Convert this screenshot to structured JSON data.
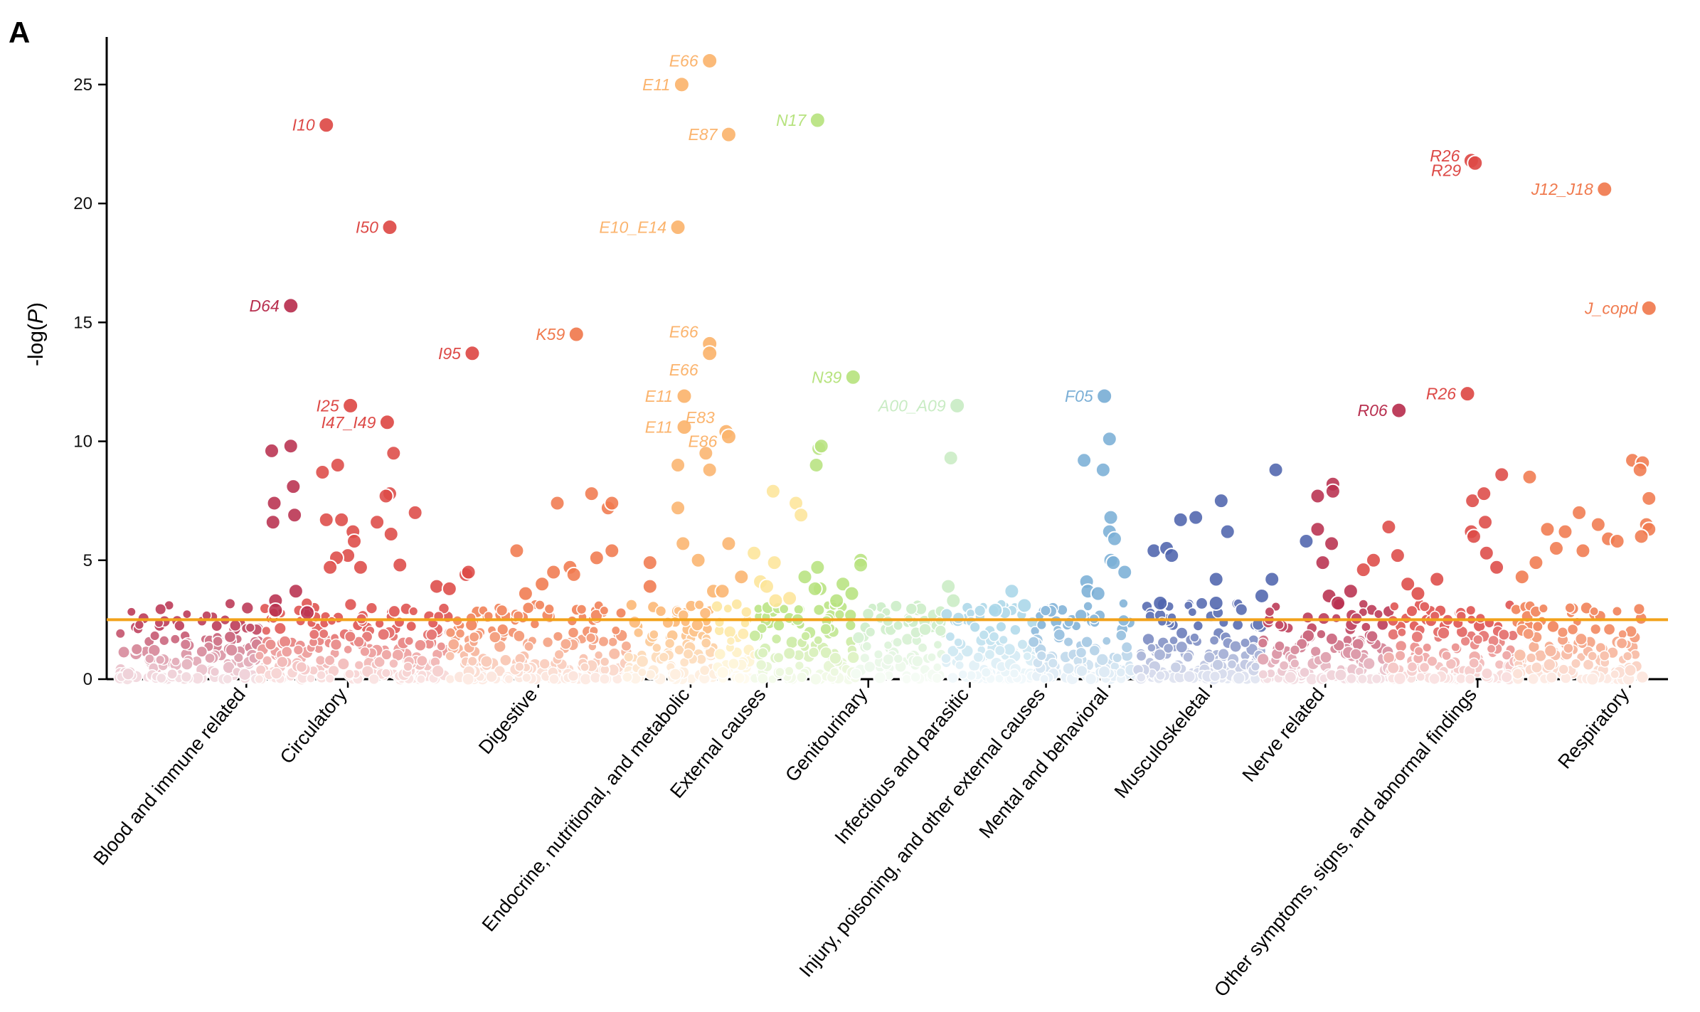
{
  "panel_label": "A",
  "chart_data": {
    "type": "scatter",
    "subtype": "manhattan",
    "title": "",
    "xlabel": "",
    "ylabel_prefix": "-log(",
    "ylabel_italic": "P",
    "ylabel_suffix": ")",
    "ylim": [
      0,
      27
    ],
    "yticks": [
      0,
      5,
      10,
      15,
      20,
      25
    ],
    "threshold": 2.5,
    "threshold_color": "#f2a21b",
    "categories": [
      {
        "name": "Blood and immune related",
        "color": "#b8304f",
        "x_range": [
          1,
          12
        ],
        "label_x": 11
      },
      {
        "name": "Circulatory",
        "color": "#dd4a47",
        "x_range": [
          12,
          27
        ],
        "label_x": 19
      },
      {
        "name": "Digestive",
        "color": "#f07a4e",
        "x_range": [
          27,
          41
        ],
        "label_x": 34
      },
      {
        "name": "Endocrine, nutritional, and metabolic",
        "color": "#fbb46e",
        "x_range": [
          41,
          48
        ],
        "label_x": 46
      },
      {
        "name": "External causes",
        "color": "#fde59a",
        "x_range": [
          48,
          51
        ],
        "label_x": 52
      },
      {
        "name": "Genitourinary",
        "color": "#b7e37f",
        "x_range": [
          51,
          59
        ],
        "label_x": 60
      },
      {
        "name": "Infectious and parasitic",
        "color": "#c9ecc4",
        "x_range": [
          59,
          66
        ],
        "label_x": 68
      },
      {
        "name": "Injury, poisoning, and other external causes",
        "color": "#a9d6e8",
        "x_range": [
          66,
          73
        ],
        "label_x": 74
      },
      {
        "name": "Mental and behavioral",
        "color": "#7bafd6",
        "x_range": [
          73,
          81
        ],
        "label_x": 79
      },
      {
        "name": "Musculoskeletal",
        "color": "#4f64ad",
        "x_range": [
          81,
          91
        ],
        "label_x": 87
      },
      {
        "name": "Nerve related",
        "color": "#b8304f",
        "x_range": [
          91,
          101
        ],
        "label_x": 96
      },
      {
        "name": "Other symptoms, signs, and abnormal findings",
        "color": "#dd4a47",
        "x_range": [
          101,
          111
        ],
        "label_x": 108
      },
      {
        "name": "Respiratory",
        "color": "#f07a4e",
        "x_range": [
          111,
          121
        ],
        "label_x": 120
      }
    ],
    "labeled_points": [
      {
        "label": "E66",
        "x": 47.5,
        "y": 26.0,
        "cat": 3
      },
      {
        "label": "E11",
        "x": 45.3,
        "y": 25.0,
        "cat": 3
      },
      {
        "label": "I10",
        "x": 17.3,
        "y": 23.3,
        "cat": 1
      },
      {
        "label": "N17",
        "x": 56.0,
        "y": 23.5,
        "cat": 5
      },
      {
        "label": "E87",
        "x": 49.0,
        "y": 22.9,
        "cat": 3
      },
      {
        "label": "R26",
        "x": 107.5,
        "y": 21.8,
        "cat": 11
      },
      {
        "label": "R29",
        "x": 107.8,
        "y": 21.7,
        "cat": 11
      },
      {
        "label": "J12_J18",
        "x": 118.0,
        "y": 20.6,
        "cat": 12
      },
      {
        "label": "I50",
        "x": 22.3,
        "y": 19.0,
        "cat": 1
      },
      {
        "label": "E10_E14",
        "x": 45.0,
        "y": 19.0,
        "cat": 3
      },
      {
        "label": "D64",
        "x": 14.5,
        "y": 15.7,
        "cat": 0
      },
      {
        "label": "J_copd",
        "x": 121.5,
        "y": 15.6,
        "cat": 12
      },
      {
        "label": "K59",
        "x": 37.0,
        "y": 14.5,
        "cat": 2
      },
      {
        "label": "E66",
        "x": 47.5,
        "y": 14.1,
        "cat": 3
      },
      {
        "label": "I95",
        "x": 28.8,
        "y": 13.7,
        "cat": 1
      },
      {
        "label": "E66",
        "x": 47.5,
        "y": 13.7,
        "cat": 3
      },
      {
        "label": "N39",
        "x": 58.8,
        "y": 12.7,
        "cat": 5
      },
      {
        "label": "F05",
        "x": 78.6,
        "y": 11.9,
        "cat": 8
      },
      {
        "label": "R26",
        "x": 107.2,
        "y": 12.0,
        "cat": 11
      },
      {
        "label": "E11",
        "x": 45.5,
        "y": 11.9,
        "cat": 3
      },
      {
        "label": "A00_A09",
        "x": 67.0,
        "y": 11.5,
        "cat": 6
      },
      {
        "label": "I25",
        "x": 19.2,
        "y": 11.5,
        "cat": 1
      },
      {
        "label": "R06",
        "x": 101.8,
        "y": 11.3,
        "cat": 10
      },
      {
        "label": "I47_I49",
        "x": 22.1,
        "y": 10.8,
        "cat": 1
      },
      {
        "label": "E83",
        "x": 48.8,
        "y": 10.4,
        "cat": 3
      },
      {
        "label": "E11",
        "x": 45.5,
        "y": 10.6,
        "cat": 3
      },
      {
        "label": "E86",
        "x": 49.0,
        "y": 10.2,
        "cat": 3
      }
    ],
    "annotations": [
      {
        "text": "E66",
        "x": 47.5,
        "y": 26.0,
        "cat": 3
      },
      {
        "text": "E11",
        "x": 45.3,
        "y": 25.0,
        "cat": 3
      },
      {
        "text": "I10",
        "x": 17.3,
        "y": 23.3,
        "cat": 1
      },
      {
        "text": "N17",
        "x": 56.0,
        "y": 23.5,
        "cat": 5
      },
      {
        "text": "E87",
        "x": 49.0,
        "y": 22.9,
        "cat": 3
      },
      {
        "text": "R26",
        "x": 107.5,
        "y": 22.0,
        "cat": 11
      },
      {
        "text": "R29",
        "x": 107.6,
        "y": 21.4,
        "cat": 11
      },
      {
        "text": "J12_J18",
        "x": 118.0,
        "y": 20.6,
        "cat": 12
      },
      {
        "text": "I50",
        "x": 22.3,
        "y": 19.0,
        "cat": 1
      },
      {
        "text": "E10_E14",
        "x": 45.0,
        "y": 19.0,
        "cat": 3
      },
      {
        "text": "D64",
        "x": 14.5,
        "y": 15.7,
        "cat": 0
      },
      {
        "text": "J_copd",
        "x": 121.5,
        "y": 15.6,
        "cat": 12
      },
      {
        "text": "K59",
        "x": 37.0,
        "y": 14.5,
        "cat": 2
      },
      {
        "text": "E66",
        "x": 47.5,
        "y": 14.6,
        "cat": 3
      },
      {
        "text": "I95",
        "x": 28.8,
        "y": 13.7,
        "cat": 1
      },
      {
        "text": "E66",
        "x": 47.5,
        "y": 13.0,
        "cat": 3
      },
      {
        "text": "N39",
        "x": 58.8,
        "y": 12.7,
        "cat": 5
      },
      {
        "text": "F05",
        "x": 78.6,
        "y": 11.9,
        "cat": 8
      },
      {
        "text": "R26",
        "x": 107.2,
        "y": 12.0,
        "cat": 11
      },
      {
        "text": "E11",
        "x": 45.5,
        "y": 11.9,
        "cat": 3
      },
      {
        "text": "A00_A09",
        "x": 67.0,
        "y": 11.5,
        "cat": 6
      },
      {
        "text": "I25",
        "x": 19.2,
        "y": 11.5,
        "cat": 1
      },
      {
        "text": "R06",
        "x": 101.8,
        "y": 11.3,
        "cat": 10
      },
      {
        "text": "I47_I49",
        "x": 22.1,
        "y": 10.8,
        "cat": 1
      },
      {
        "text": "E83",
        "x": 48.8,
        "y": 11.0,
        "cat": 3
      },
      {
        "text": "E11",
        "x": 45.5,
        "y": 10.6,
        "cat": 3
      },
      {
        "text": "E86",
        "x": 49.0,
        "y": 10.0,
        "cat": 3
      }
    ],
    "notable_points": [
      {
        "x": 13.0,
        "y": 9.6,
        "cat": 0
      },
      {
        "x": 14.5,
        "y": 9.8,
        "cat": 0
      },
      {
        "x": 13.2,
        "y": 7.4,
        "cat": 0
      },
      {
        "x": 14.7,
        "y": 8.1,
        "cat": 0
      },
      {
        "x": 13.1,
        "y": 6.6,
        "cat": 0
      },
      {
        "x": 14.8,
        "y": 6.9,
        "cat": 0
      },
      {
        "x": 13.3,
        "y": 3.3,
        "cat": 0
      },
      {
        "x": 13.3,
        "y": 2.9,
        "cat": 0
      },
      {
        "x": 14.9,
        "y": 3.7,
        "cat": 0
      },
      {
        "x": 15.8,
        "y": 2.8,
        "cat": 0
      },
      {
        "x": 17.0,
        "y": 8.7,
        "cat": 1
      },
      {
        "x": 18.2,
        "y": 9.0,
        "cat": 1
      },
      {
        "x": 17.3,
        "y": 6.7,
        "cat": 1
      },
      {
        "x": 18.5,
        "y": 6.7,
        "cat": 1
      },
      {
        "x": 19.4,
        "y": 6.2,
        "cat": 1
      },
      {
        "x": 19.5,
        "y": 5.8,
        "cat": 1
      },
      {
        "x": 19.0,
        "y": 5.2,
        "cat": 1
      },
      {
        "x": 18.1,
        "y": 5.1,
        "cat": 1
      },
      {
        "x": 17.6,
        "y": 4.7,
        "cat": 1
      },
      {
        "x": 20.0,
        "y": 4.7,
        "cat": 1
      },
      {
        "x": 21.3,
        "y": 6.6,
        "cat": 1
      },
      {
        "x": 22.3,
        "y": 7.8,
        "cat": 1
      },
      {
        "x": 22.0,
        "y": 7.7,
        "cat": 1
      },
      {
        "x": 22.6,
        "y": 9.5,
        "cat": 1
      },
      {
        "x": 22.4,
        "y": 6.1,
        "cat": 1
      },
      {
        "x": 24.3,
        "y": 7.0,
        "cat": 1
      },
      {
        "x": 23.1,
        "y": 4.8,
        "cat": 1
      },
      {
        "x": 28.3,
        "y": 4.4,
        "cat": 1
      },
      {
        "x": 28.5,
        "y": 4.5,
        "cat": 1
      },
      {
        "x": 26.0,
        "y": 3.9,
        "cat": 1
      },
      {
        "x": 27.0,
        "y": 3.8,
        "cat": 1
      },
      {
        "x": 32.3,
        "y": 5.4,
        "cat": 2
      },
      {
        "x": 35.5,
        "y": 7.4,
        "cat": 2
      },
      {
        "x": 38.2,
        "y": 7.8,
        "cat": 2
      },
      {
        "x": 39.5,
        "y": 7.2,
        "cat": 2
      },
      {
        "x": 39.8,
        "y": 7.4,
        "cat": 2
      },
      {
        "x": 39.8,
        "y": 5.4,
        "cat": 2
      },
      {
        "x": 38.6,
        "y": 5.1,
        "cat": 2
      },
      {
        "x": 36.5,
        "y": 4.7,
        "cat": 2
      },
      {
        "x": 36.8,
        "y": 4.4,
        "cat": 2
      },
      {
        "x": 35.2,
        "y": 4.5,
        "cat": 2
      },
      {
        "x": 33.0,
        "y": 3.6,
        "cat": 2
      },
      {
        "x": 34.3,
        "y": 4.0,
        "cat": 2
      },
      {
        "x": 42.8,
        "y": 4.9,
        "cat": 2
      },
      {
        "x": 42.8,
        "y": 3.9,
        "cat": 2
      },
      {
        "x": 45.0,
        "y": 9.0,
        "cat": 3
      },
      {
        "x": 47.5,
        "y": 8.8,
        "cat": 3
      },
      {
        "x": 47.2,
        "y": 9.5,
        "cat": 3
      },
      {
        "x": 45.0,
        "y": 7.2,
        "cat": 3
      },
      {
        "x": 45.4,
        "y": 5.7,
        "cat": 3
      },
      {
        "x": 46.6,
        "y": 5.0,
        "cat": 3
      },
      {
        "x": 49.0,
        "y": 5.7,
        "cat": 3
      },
      {
        "x": 47.8,
        "y": 3.7,
        "cat": 3
      },
      {
        "x": 48.5,
        "y": 3.7,
        "cat": 3
      },
      {
        "x": 50.0,
        "y": 4.3,
        "cat": 3
      },
      {
        "x": 52.5,
        "y": 7.9,
        "cat": 4
      },
      {
        "x": 54.3,
        "y": 7.4,
        "cat": 4
      },
      {
        "x": 54.7,
        "y": 6.9,
        "cat": 4
      },
      {
        "x": 51.0,
        "y": 5.3,
        "cat": 4
      },
      {
        "x": 51.5,
        "y": 4.1,
        "cat": 4
      },
      {
        "x": 52.6,
        "y": 4.9,
        "cat": 4
      },
      {
        "x": 52.0,
        "y": 3.9,
        "cat": 4
      },
      {
        "x": 52.7,
        "y": 3.3,
        "cat": 4
      },
      {
        "x": 53.8,
        "y": 3.4,
        "cat": 4
      },
      {
        "x": 56.1,
        "y": 9.7,
        "cat": 5
      },
      {
        "x": 56.3,
        "y": 9.8,
        "cat": 5
      },
      {
        "x": 55.9,
        "y": 9.0,
        "cat": 5
      },
      {
        "x": 56.0,
        "y": 4.7,
        "cat": 5
      },
      {
        "x": 56.2,
        "y": 3.8,
        "cat": 5
      },
      {
        "x": 55.8,
        "y": 3.8,
        "cat": 5
      },
      {
        "x": 55.0,
        "y": 4.3,
        "cat": 5
      },
      {
        "x": 58.0,
        "y": 4.0,
        "cat": 5
      },
      {
        "x": 57.5,
        "y": 3.3,
        "cat": 5
      },
      {
        "x": 59.4,
        "y": 5.0,
        "cat": 5
      },
      {
        "x": 59.4,
        "y": 4.8,
        "cat": 5
      },
      {
        "x": 58.7,
        "y": 3.6,
        "cat": 5
      },
      {
        "x": 66.5,
        "y": 9.3,
        "cat": 6
      },
      {
        "x": 66.3,
        "y": 3.9,
        "cat": 6
      },
      {
        "x": 66.7,
        "y": 3.3,
        "cat": 6
      },
      {
        "x": 71.3,
        "y": 3.7,
        "cat": 7
      },
      {
        "x": 72.3,
        "y": 3.1,
        "cat": 7
      },
      {
        "x": 70.0,
        "y": 2.9,
        "cat": 7
      },
      {
        "x": 77.0,
        "y": 9.2,
        "cat": 8
      },
      {
        "x": 79.0,
        "y": 10.1,
        "cat": 8
      },
      {
        "x": 78.5,
        "y": 8.8,
        "cat": 8
      },
      {
        "x": 79.1,
        "y": 6.8,
        "cat": 8
      },
      {
        "x": 79.0,
        "y": 6.2,
        "cat": 8
      },
      {
        "x": 79.4,
        "y": 5.9,
        "cat": 8
      },
      {
        "x": 79.1,
        "y": 5.0,
        "cat": 8
      },
      {
        "x": 79.3,
        "y": 4.9,
        "cat": 8
      },
      {
        "x": 80.2,
        "y": 4.5,
        "cat": 8
      },
      {
        "x": 77.2,
        "y": 4.1,
        "cat": 8
      },
      {
        "x": 77.3,
        "y": 3.7,
        "cat": 8
      },
      {
        "x": 78.1,
        "y": 3.6,
        "cat": 8
      },
      {
        "x": 82.5,
        "y": 5.4,
        "cat": 9
      },
      {
        "x": 83.5,
        "y": 5.5,
        "cat": 9
      },
      {
        "x": 83.9,
        "y": 5.2,
        "cat": 9
      },
      {
        "x": 84.6,
        "y": 6.7,
        "cat": 9
      },
      {
        "x": 85.8,
        "y": 6.8,
        "cat": 9
      },
      {
        "x": 87.8,
        "y": 7.5,
        "cat": 9
      },
      {
        "x": 88.3,
        "y": 6.2,
        "cat": 9
      },
      {
        "x": 87.4,
        "y": 4.2,
        "cat": 9
      },
      {
        "x": 87.4,
        "y": 3.2,
        "cat": 9
      },
      {
        "x": 92.1,
        "y": 8.8,
        "cat": 9
      },
      {
        "x": 91.8,
        "y": 4.2,
        "cat": 9
      },
      {
        "x": 91.0,
        "y": 3.5,
        "cat": 9
      },
      {
        "x": 94.5,
        "y": 5.8,
        "cat": 9
      },
      {
        "x": 83.0,
        "y": 3.2,
        "cat": 9
      },
      {
        "x": 95.4,
        "y": 7.7,
        "cat": 10
      },
      {
        "x": 96.6,
        "y": 8.2,
        "cat": 10
      },
      {
        "x": 96.6,
        "y": 7.9,
        "cat": 10
      },
      {
        "x": 95.4,
        "y": 6.3,
        "cat": 10
      },
      {
        "x": 96.5,
        "y": 5.7,
        "cat": 10
      },
      {
        "x": 95.8,
        "y": 4.9,
        "cat": 10
      },
      {
        "x": 96.3,
        "y": 3.5,
        "cat": 10
      },
      {
        "x": 98.0,
        "y": 3.7,
        "cat": 10
      },
      {
        "x": 97.0,
        "y": 3.2,
        "cat": 10
      },
      {
        "x": 101.0,
        "y": 6.4,
        "cat": 11
      },
      {
        "x": 101.7,
        "y": 5.2,
        "cat": 11
      },
      {
        "x": 99.8,
        "y": 5.0,
        "cat": 11
      },
      {
        "x": 99.0,
        "y": 4.6,
        "cat": 11
      },
      {
        "x": 102.5,
        "y": 4.0,
        "cat": 11
      },
      {
        "x": 103.3,
        "y": 3.6,
        "cat": 11
      },
      {
        "x": 104.8,
        "y": 4.2,
        "cat": 11
      },
      {
        "x": 107.6,
        "y": 7.5,
        "cat": 11
      },
      {
        "x": 108.5,
        "y": 7.8,
        "cat": 11
      },
      {
        "x": 107.5,
        "y": 6.2,
        "cat": 11
      },
      {
        "x": 107.7,
        "y": 6.0,
        "cat": 11
      },
      {
        "x": 108.6,
        "y": 6.6,
        "cat": 11
      },
      {
        "x": 108.7,
        "y": 5.3,
        "cat": 11
      },
      {
        "x": 109.9,
        "y": 8.6,
        "cat": 11
      },
      {
        "x": 109.5,
        "y": 4.7,
        "cat": 11
      },
      {
        "x": 112.1,
        "y": 8.5,
        "cat": 12
      },
      {
        "x": 113.5,
        "y": 6.3,
        "cat": 12
      },
      {
        "x": 114.2,
        "y": 5.5,
        "cat": 12
      },
      {
        "x": 114.9,
        "y": 6.2,
        "cat": 12
      },
      {
        "x": 116.0,
        "y": 7.0,
        "cat": 12
      },
      {
        "x": 116.3,
        "y": 5.4,
        "cat": 12
      },
      {
        "x": 117.5,
        "y": 6.5,
        "cat": 12
      },
      {
        "x": 118.3,
        "y": 5.9,
        "cat": 12
      },
      {
        "x": 119.0,
        "y": 5.8,
        "cat": 12
      },
      {
        "x": 120.2,
        "y": 9.2,
        "cat": 12
      },
      {
        "x": 121.0,
        "y": 9.1,
        "cat": 12
      },
      {
        "x": 120.8,
        "y": 8.8,
        "cat": 12
      },
      {
        "x": 121.5,
        "y": 7.6,
        "cat": 12
      },
      {
        "x": 121.3,
        "y": 6.5,
        "cat": 12
      },
      {
        "x": 121.5,
        "y": 6.3,
        "cat": 12
      },
      {
        "x": 120.9,
        "y": 6.0,
        "cat": 12
      },
      {
        "x": 111.5,
        "y": 4.3,
        "cat": 12
      },
      {
        "x": 112.6,
        "y": 4.9,
        "cat": 12
      }
    ]
  }
}
